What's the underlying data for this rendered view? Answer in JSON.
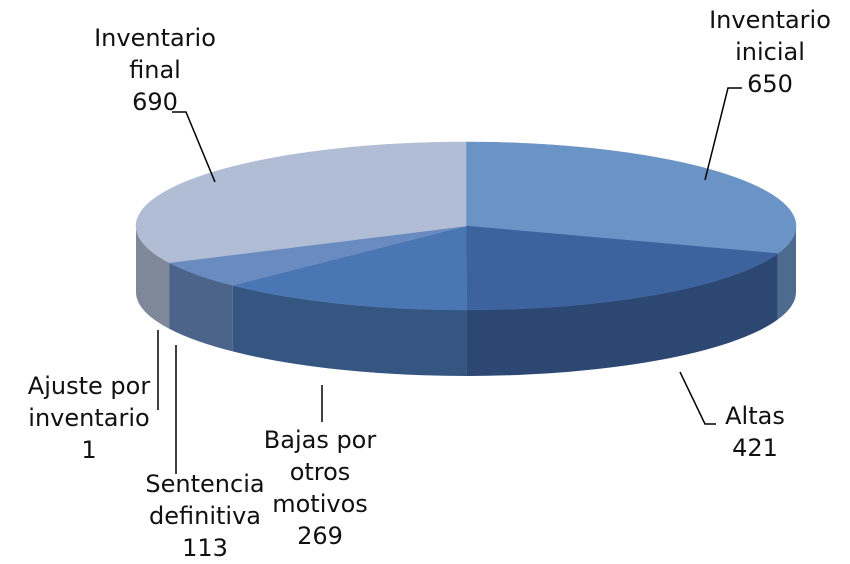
{
  "chart_data": {
    "type": "pie3d",
    "categories": [
      "Inventario inicial",
      "Altas",
      "Bajas por otros motivos",
      "Sentencia definitiva",
      "Ajuste por inventario",
      "Inventario final"
    ],
    "values": [
      650,
      421,
      269,
      113,
      1,
      690
    ],
    "colors": [
      "#6b94c6",
      "#3d639e",
      "#4a77b3",
      "#6a8bbf",
      "#7d9bcb",
      "#b1bdd5"
    ]
  }
}
